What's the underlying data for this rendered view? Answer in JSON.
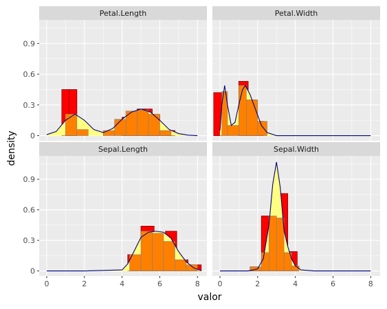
{
  "chart_data": {
    "type": "bar",
    "layout": "facet_wrap_2x2_shared_axes",
    "xlabel": "valor",
    "ylabel": "density",
    "xlim": [
      -0.4,
      8.5
    ],
    "ylim": [
      -0.05,
      1.13
    ],
    "x_ticks": [
      0,
      2,
      4,
      6,
      8
    ],
    "y_ticks": [
      0,
      0.3,
      0.6,
      0.9
    ],
    "y_tick_labels": [
      "0",
      "0.3",
      "0.6",
      "0.9"
    ],
    "grid": true,
    "colors": {
      "panel_bg": "#ebebeb",
      "strip_bg": "#d9d9d9",
      "grid_major": "#ffffff",
      "hist_outline_fill": "#ff0000",
      "hist_outline_stroke": "#800000",
      "hist_inner_fill": "#ff8000",
      "hist_inner_stroke": "#7f7f7f",
      "density_fill": "#ffff80",
      "density_line": "#000080"
    },
    "panels": [
      {
        "title": "Petal.Length",
        "red_bars": [
          [
            0.8,
            1.2,
            0.45
          ],
          [
            1.2,
            1.6,
            0.45
          ],
          [
            4.0,
            4.4,
            0.18
          ],
          [
            4.4,
            4.8,
            0.19
          ],
          [
            4.8,
            5.2,
            0.26
          ],
          [
            5.2,
            5.6,
            0.26
          ],
          [
            5.6,
            6.0,
            0.2
          ],
          [
            6.0,
            6.4,
            0.05
          ],
          [
            6.4,
            6.8,
            0.05
          ]
        ],
        "orange_bars": [
          [
            1.0,
            1.6,
            0.21
          ],
          [
            1.6,
            2.2,
            0.06
          ],
          [
            3.0,
            3.6,
            0.05
          ],
          [
            3.6,
            4.2,
            0.16
          ],
          [
            4.2,
            4.8,
            0.24
          ],
          [
            4.8,
            5.4,
            0.25
          ],
          [
            5.4,
            6.0,
            0.21
          ],
          [
            6.0,
            6.6,
            0.05
          ]
        ],
        "density": [
          [
            0,
            0.01
          ],
          [
            0.5,
            0.04
          ],
          [
            1.0,
            0.15
          ],
          [
            1.5,
            0.21
          ],
          [
            2.0,
            0.15
          ],
          [
            2.5,
            0.06
          ],
          [
            3.0,
            0.03
          ],
          [
            3.5,
            0.07
          ],
          [
            4.0,
            0.16
          ],
          [
            4.5,
            0.23
          ],
          [
            5.0,
            0.26
          ],
          [
            5.5,
            0.23
          ],
          [
            6.0,
            0.15
          ],
          [
            6.5,
            0.06
          ],
          [
            7.0,
            0.02
          ],
          [
            7.5,
            0.005
          ],
          [
            8.0,
            0.0
          ]
        ]
      },
      {
        "title": "Petal.Width",
        "red_bars": [
          [
            -0.33,
            0.1,
            0.42
          ],
          [
            1.0,
            1.5,
            0.53
          ],
          [
            1.5,
            1.9,
            0.35
          ],
          [
            1.9,
            2.3,
            0.14
          ]
        ],
        "orange_bars": [
          [
            0.1,
            0.4,
            0.43
          ],
          [
            0.4,
            1.0,
            0.1
          ],
          [
            1.0,
            1.4,
            0.49
          ],
          [
            1.4,
            2.0,
            0.35
          ],
          [
            2.0,
            2.5,
            0.14
          ]
        ],
        "density": [
          [
            0,
            0.05
          ],
          [
            0.1,
            0.3
          ],
          [
            0.25,
            0.49
          ],
          [
            0.4,
            0.3
          ],
          [
            0.6,
            0.1
          ],
          [
            0.8,
            0.13
          ],
          [
            1.0,
            0.3
          ],
          [
            1.2,
            0.45
          ],
          [
            1.35,
            0.49
          ],
          [
            1.6,
            0.4
          ],
          [
            1.9,
            0.25
          ],
          [
            2.2,
            0.1
          ],
          [
            2.5,
            0.03
          ],
          [
            3.0,
            0.0
          ],
          [
            5.0,
            0.0
          ],
          [
            8.0,
            0.0
          ]
        ]
      },
      {
        "title": "Sepal.Length",
        "red_bars": [
          [
            4.3,
            4.6,
            0.16
          ],
          [
            4.6,
            5.2,
            0.16
          ],
          [
            5.0,
            5.7,
            0.44
          ],
          [
            5.7,
            6.3,
            0.37
          ],
          [
            6.3,
            6.9,
            0.39
          ],
          [
            6.9,
            7.5,
            0.11
          ],
          [
            7.5,
            8.2,
            0.06
          ]
        ],
        "orange_bars": [
          [
            4.4,
            5.0,
            0.16
          ],
          [
            5.0,
            5.6,
            0.39
          ],
          [
            5.6,
            6.2,
            0.37
          ],
          [
            6.2,
            6.8,
            0.29
          ],
          [
            6.8,
            7.4,
            0.11
          ],
          [
            7.4,
            8.0,
            0.06
          ]
        ],
        "density": [
          [
            0,
            0.0
          ],
          [
            2.0,
            0.0
          ],
          [
            4.0,
            0.01
          ],
          [
            4.3,
            0.07
          ],
          [
            4.6,
            0.18
          ],
          [
            5.0,
            0.33
          ],
          [
            5.4,
            0.38
          ],
          [
            5.8,
            0.39
          ],
          [
            6.2,
            0.38
          ],
          [
            6.6,
            0.32
          ],
          [
            7.0,
            0.19
          ],
          [
            7.4,
            0.09
          ],
          [
            7.8,
            0.03
          ],
          [
            8.2,
            0.005
          ]
        ]
      },
      {
        "title": "Sepal.Width",
        "red_bars": [
          [
            1.6,
            2.2,
            0.04
          ],
          [
            2.2,
            2.8,
            0.54
          ],
          [
            2.8,
            3.1,
            0.75
          ],
          [
            3.1,
            3.6,
            0.76
          ],
          [
            3.6,
            4.1,
            0.19
          ]
        ],
        "orange_bars": [
          [
            1.6,
            2.2,
            0.04
          ],
          [
            2.2,
            2.6,
            0.18
          ],
          [
            2.6,
            3.0,
            0.54
          ],
          [
            3.0,
            3.4,
            0.52
          ],
          [
            3.4,
            3.8,
            0.18
          ],
          [
            3.8,
            4.2,
            0.05
          ]
        ],
        "density": [
          [
            0,
            0.0
          ],
          [
            1.5,
            0.0
          ],
          [
            2.0,
            0.02
          ],
          [
            2.3,
            0.12
          ],
          [
            2.6,
            0.45
          ],
          [
            2.8,
            0.85
          ],
          [
            3.0,
            1.07
          ],
          [
            3.2,
            0.82
          ],
          [
            3.4,
            0.4
          ],
          [
            3.6,
            0.24
          ],
          [
            3.8,
            0.12
          ],
          [
            4.0,
            0.05
          ],
          [
            4.3,
            0.01
          ],
          [
            5.0,
            0.0
          ],
          [
            8.0,
            0.0
          ]
        ]
      }
    ]
  }
}
